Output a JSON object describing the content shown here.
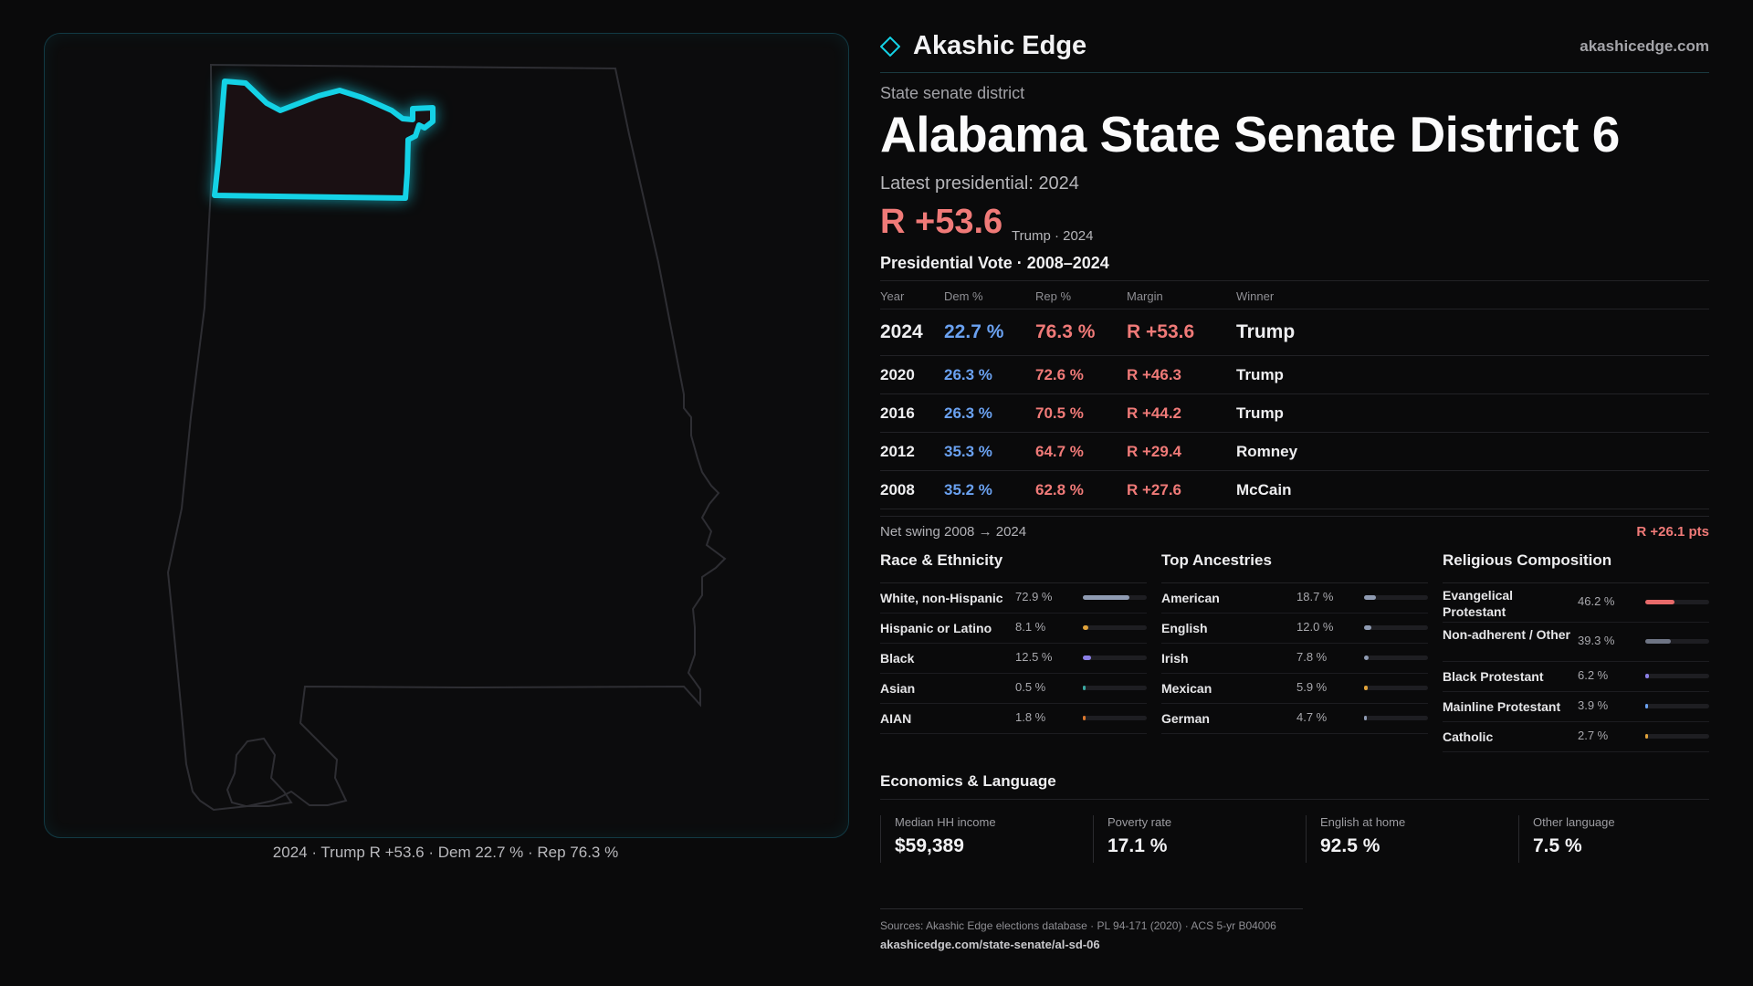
{
  "brand": {
    "name": "Akashic Edge",
    "url": "akashicedge.com",
    "accent": "#14d2e6"
  },
  "kicker": "State senate district",
  "title": "Alabama State Senate District 6",
  "latest_label": "Latest presidential: 2024",
  "headline_margin": "R +53.6",
  "headline_sub": "Trump · 2024",
  "vote_table": {
    "title": "Presidential Vote · 2008–2024",
    "headers": {
      "year": "Year",
      "dem": "Dem %",
      "rep": "Rep %",
      "margin": "Margin",
      "winner": "Winner"
    },
    "rows": [
      {
        "year": "2024",
        "dem": "22.7 %",
        "rep": "76.3 %",
        "margin": "R +53.6",
        "winner": "Trump"
      },
      {
        "year": "2020",
        "dem": "26.3 %",
        "rep": "72.6 %",
        "margin": "R +46.3",
        "winner": "Trump"
      },
      {
        "year": "2016",
        "dem": "26.3 %",
        "rep": "70.5 %",
        "margin": "R +44.2",
        "winner": "Trump"
      },
      {
        "year": "2012",
        "dem": "35.3 %",
        "rep": "64.7 %",
        "margin": "R +29.4",
        "winner": "Romney"
      },
      {
        "year": "2008",
        "dem": "35.2 %",
        "rep": "62.8 %",
        "margin": "R +27.6",
        "winner": "McCain"
      }
    ]
  },
  "swing": {
    "label": "Net swing 2008 → 2024",
    "value": "R +26.1 pts"
  },
  "race": {
    "title": "Race & Ethnicity",
    "items": [
      {
        "label": "White, non-Hispanic",
        "value": "72.9 %",
        "pct": 72.9,
        "color": "#8f9bb2"
      },
      {
        "label": "Hispanic or Latino",
        "value": "8.1 %",
        "pct": 8.1,
        "color": "#e0a23a"
      },
      {
        "label": "Black",
        "value": "12.5 %",
        "pct": 12.5,
        "color": "#8b7fe6"
      },
      {
        "label": "Asian",
        "value": "0.5 %",
        "pct": 0.5,
        "color": "#3aa7a0"
      },
      {
        "label": "AIAN",
        "value": "1.8 %",
        "pct": 1.8,
        "color": "#d9772e"
      }
    ]
  },
  "ancestry": {
    "title": "Top Ancestries",
    "items": [
      {
        "label": "American",
        "value": "18.7 %",
        "pct": 18.7,
        "color": "#8f9bb2"
      },
      {
        "label": "English",
        "value": "12.0 %",
        "pct": 12.0,
        "color": "#8f9bb2"
      },
      {
        "label": "Irish",
        "value": "7.8 %",
        "pct": 7.8,
        "color": "#8f9bb2"
      },
      {
        "label": "Mexican",
        "value": "5.9 %",
        "pct": 5.9,
        "color": "#e0a23a"
      },
      {
        "label": "German",
        "value": "4.7 %",
        "pct": 4.7,
        "color": "#8f9bb2"
      }
    ]
  },
  "religion": {
    "title": "Religious Composition",
    "items": [
      {
        "label": "Evangelical Protestant",
        "value": "46.2 %",
        "pct": 46.2,
        "color": "#e86a6a"
      },
      {
        "label": "Non-adherent / Other",
        "value": "39.3 %",
        "pct": 39.3,
        "color": "#6e7484"
      },
      {
        "label": "Black Protestant",
        "value": "6.2 %",
        "pct": 6.2,
        "color": "#8b7fe6"
      },
      {
        "label": "Mainline Protestant",
        "value": "3.9 %",
        "pct": 3.9,
        "color": "#6aa1f0"
      },
      {
        "label": "Catholic",
        "value": "2.7 %",
        "pct": 2.7,
        "color": "#e0a23a"
      }
    ]
  },
  "economics": {
    "title": "Economics & Language",
    "items": [
      {
        "label": "Median HH income",
        "value": "$59,389"
      },
      {
        "label": "Poverty rate",
        "value": "17.1 %"
      },
      {
        "label": "English at home",
        "value": "92.5 %"
      },
      {
        "label": "Other language",
        "value": "7.5 %"
      }
    ]
  },
  "sources": {
    "text": "Sources: Akashic Edge elections database · PL 94-171 (2020) · ACS 5-yr B04006",
    "url": "akashicedge.com/state-senate/al-sd-06"
  },
  "map_caption": "2024 · Trump R +53.6 · Dem 22.7 % · Rep 76.3 %"
}
